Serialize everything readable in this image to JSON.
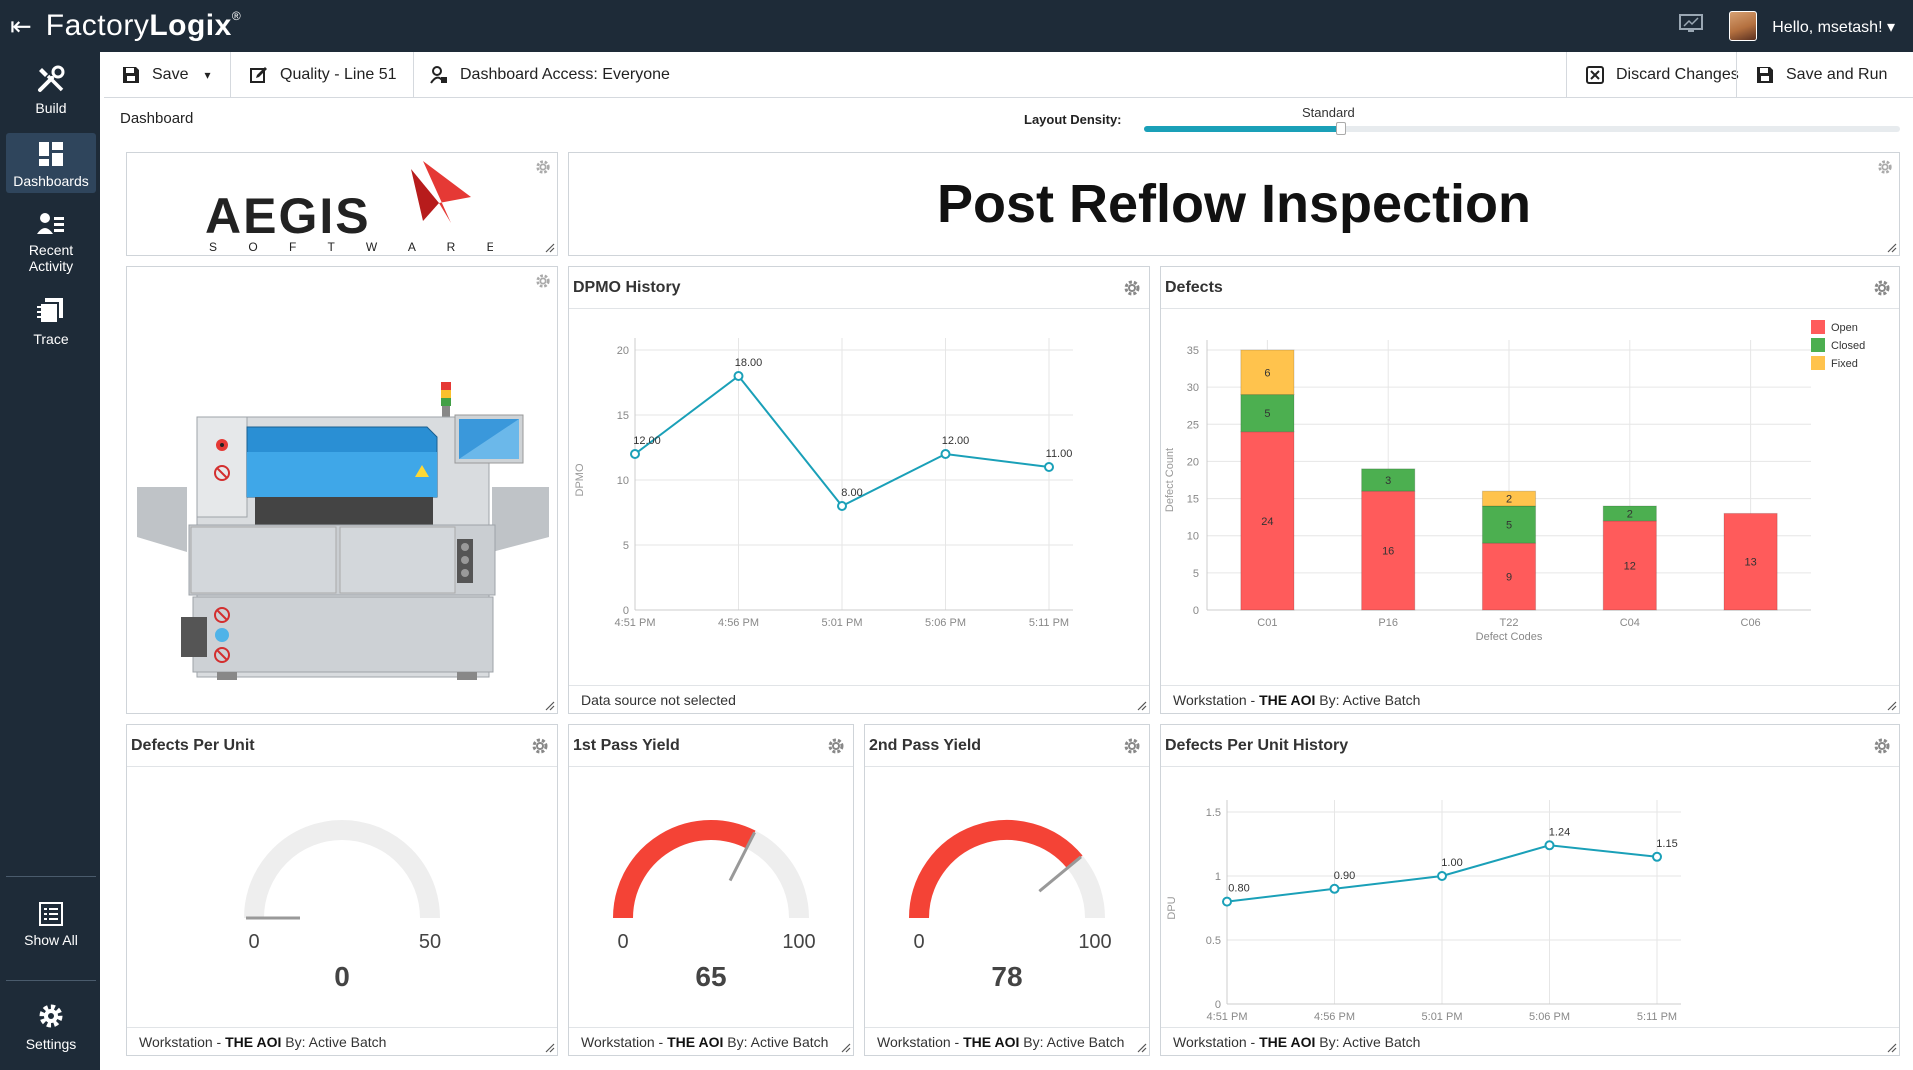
{
  "app": {
    "brand_light": "Factory",
    "brand_bold": "Logix",
    "registered_mark": "®",
    "greeting": "Hello, msetash! ▾"
  },
  "sidebar": {
    "items": [
      {
        "label": "Build",
        "icon": "tools-icon"
      },
      {
        "label": "Dashboards",
        "icon": "dashboard-icon"
      },
      {
        "label": "Recent Activity",
        "icon": "recent-activity-icon"
      },
      {
        "label": "Trace",
        "icon": "trace-icon"
      },
      {
        "label": "Show All",
        "icon": "list-icon"
      },
      {
        "label": "Settings",
        "icon": "gear-icon"
      }
    ]
  },
  "toolbar": {
    "save_label": "Save",
    "dashboard_name": "Quality - Line 51",
    "access_label": "Dashboard Access: Everyone",
    "discard_label": "Discard Changes",
    "save_run_label": "Save and Run"
  },
  "subbar": {
    "title": "Dashboard",
    "density_label": "Layout Density:",
    "density_value": "Standard",
    "density_level": 0.26
  },
  "logo_widget": {
    "wordmark": "AEGIS",
    "subtext": "S O F T W A R E"
  },
  "title_widget": {
    "text": "Post Reflow Inspection"
  },
  "colors": {
    "accent": "#1aa0b8",
    "open": "#ff5b5b",
    "closed": "#4caf50",
    "fixed": "#ffc34d",
    "gauge_red": "#f44336",
    "gauge_bg": "#eeeeee"
  },
  "widgets": {
    "dpmo_history": {
      "title": "DPMO History",
      "footer": "Data source not selected"
    },
    "defects": {
      "title": "Defects",
      "footer_prefix": "Workstation - ",
      "footer_bold": "THE AOI",
      "footer_suffix": " By: Active Batch"
    },
    "dpu": {
      "title": "Defects Per Unit",
      "footer_prefix": "Workstation - ",
      "footer_bold": "THE AOI",
      "footer_suffix": " By: Active Batch"
    },
    "first_pass": {
      "title": "1st Pass Yield",
      "footer_prefix": "Workstation - ",
      "footer_bold": "THE AOI",
      "footer_suffix": " By: Active Batch"
    },
    "second_pass": {
      "title": "2nd Pass Yield",
      "footer_prefix": "Workstation - ",
      "footer_bold": "THE AOI",
      "footer_suffix": " By: Active Batch"
    },
    "dpu_history": {
      "title": "Defects Per Unit History",
      "footer_prefix": "Workstation - ",
      "footer_bold": "THE AOI",
      "footer_suffix": " By: Active Batch"
    }
  },
  "chart_data": [
    {
      "id": "dpmo_history",
      "type": "line",
      "x": [
        "4:51 PM",
        "4:56 PM",
        "5:01 PM",
        "5:06 PM",
        "5:11 PM"
      ],
      "x_minutes": [
        0,
        5,
        10,
        15,
        20
      ],
      "points": [
        {
          "x": "4:51 PM",
          "y": 12.0,
          "label": "12.00"
        },
        {
          "x": "4:56 PM",
          "y": 18.0,
          "label": "18.00"
        },
        {
          "x": "5:01 PM",
          "y": 8.0,
          "label": "8.00"
        },
        {
          "x": "5:06 PM",
          "y": 12.0,
          "label": "12.00"
        },
        {
          "x": "5:11 PM",
          "y": 11.0,
          "label": "11.00"
        }
      ],
      "ylabel": "DPMO",
      "ylim": [
        0,
        20
      ],
      "yticks": [
        0,
        5,
        10,
        15,
        20
      ],
      "grid": true
    },
    {
      "id": "defects",
      "type": "bar",
      "stacked": true,
      "categories": [
        "C01",
        "P16",
        "T22",
        "C04",
        "C06"
      ],
      "series": [
        {
          "name": "Open",
          "values": [
            24,
            16,
            9,
            12,
            13
          ]
        },
        {
          "name": "Closed",
          "values": [
            5,
            3,
            5,
            2,
            0
          ]
        },
        {
          "name": "Fixed",
          "values": [
            6,
            0,
            2,
            0,
            0
          ]
        }
      ],
      "xlabel": "Defect Codes",
      "ylabel": "Defect Count",
      "ylim": [
        0,
        35
      ],
      "yticks": [
        0,
        5,
        10,
        15,
        20,
        25,
        30,
        35
      ],
      "legend": "top-right",
      "grid": true
    },
    {
      "id": "dpu",
      "type": "gauge",
      "value": 0,
      "min": 0,
      "max": 50
    },
    {
      "id": "first_pass",
      "type": "gauge",
      "value": 65,
      "min": 0,
      "max": 100
    },
    {
      "id": "second_pass",
      "type": "gauge",
      "value": 78,
      "min": 0,
      "max": 100
    },
    {
      "id": "dpu_history",
      "type": "line",
      "x": [
        "4:51 PM",
        "4:56 PM",
        "5:01 PM",
        "5:06 PM",
        "5:11 PM"
      ],
      "points": [
        {
          "x": "4:51 PM",
          "y": 0.8,
          "label": "0.80"
        },
        {
          "x": "4:56 PM",
          "y": 0.9,
          "label": "0.90"
        },
        {
          "x": "5:01 PM",
          "y": 1.0,
          "label": "1.00"
        },
        {
          "x": "5:06 PM",
          "y": 1.24,
          "label": "1.24"
        },
        {
          "x": "5:11 PM",
          "y": 1.15,
          "label": "1.15"
        }
      ],
      "ylabel": "DPU",
      "ylim": [
        0,
        1.5
      ],
      "yticks": [
        0,
        0.5,
        1,
        1.5
      ],
      "grid": true
    }
  ]
}
